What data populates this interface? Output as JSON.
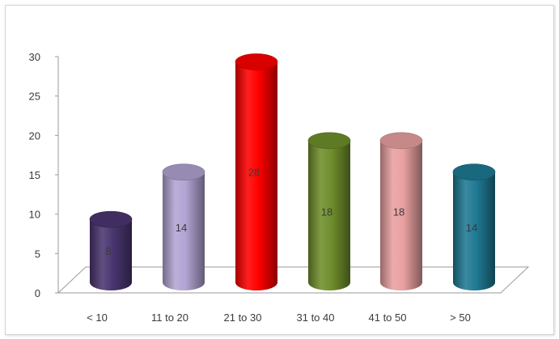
{
  "chart_data": {
    "type": "bar",
    "title": "",
    "xlabel": "",
    "ylabel": "",
    "categories": [
      "< 10",
      "11 to 20",
      "21 to 30",
      "31 to 40",
      "41 to 50",
      "> 50"
    ],
    "values": [
      8,
      14,
      28,
      18,
      18,
      14
    ],
    "data_labels": [
      "8",
      "14",
      "28",
      "18",
      "18",
      "14"
    ],
    "ylim": [
      0,
      30
    ],
    "yticks": [
      "0",
      "5",
      "10",
      "15",
      "20",
      "25",
      "30"
    ],
    "grid": false,
    "legend": "none",
    "style": "3d-cylinder",
    "colors": [
      "#4a3670",
      "#b3a4d3",
      "#ff0000",
      "#6f8f2c",
      "#e9a0a0",
      "#1f7a94"
    ]
  }
}
